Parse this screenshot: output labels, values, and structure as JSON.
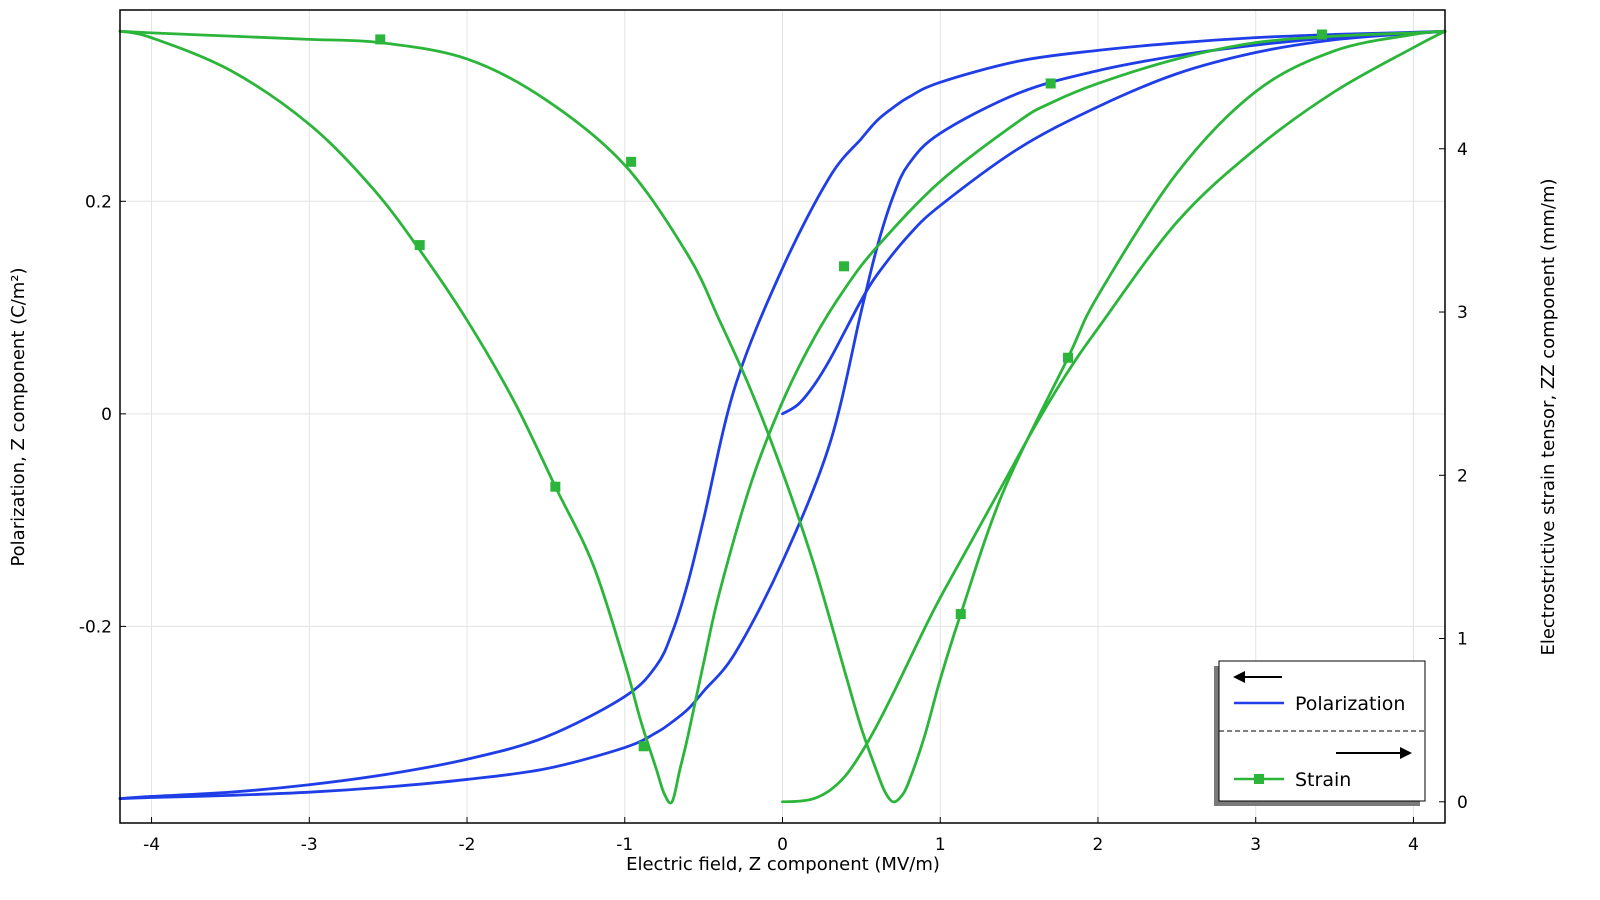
{
  "chart_data": {
    "type": "line",
    "title": "",
    "xlabel": "Electric field, Z component (MV/m)",
    "ylabel_left": "Polarization, Z component (C/m²)",
    "ylabel_right": "Electrostrictive strain tensor, ZZ component (mm/m)",
    "xlim": [
      -4.2,
      4.2
    ],
    "ylim_left": [
      -0.385,
      0.38
    ],
    "ylim_right": [
      -0.13,
      4.85
    ],
    "xticks": [
      "-4",
      "-3",
      "-2",
      "-1",
      "0",
      "1",
      "2",
      "3",
      "4"
    ],
    "yticks_left": [
      "0.2",
      "0",
      "-0.2"
    ],
    "yticks_right": [
      "4",
      "3",
      "2",
      "1",
      "0"
    ],
    "grid": true,
    "legend": {
      "placement": "bottom-right",
      "groups": [
        {
          "arrow": "left",
          "entries": [
            "Polarization"
          ]
        },
        {
          "arrow": "right",
          "entries": [
            "Strain"
          ]
        }
      ]
    },
    "series": [
      {
        "name": "Polarization",
        "axis": "left",
        "color": "#1f3ee8",
        "marker": "none",
        "segments": [
          {
            "x": [
              0,
              0.1,
              0.2,
              0.3,
              0.4,
              0.5,
              0.6,
              0.8,
              1.0,
              1.5,
              2.0,
              2.5,
              3.0,
              3.5,
              4.0,
              4.2
            ],
            "y": [
              0.0,
              0.009,
              0.027,
              0.051,
              0.079,
              0.107,
              0.131,
              0.168,
              0.196,
              0.25,
              0.289,
              0.32,
              0.34,
              0.352,
              0.358,
              0.36
            ]
          },
          {
            "x": [
              4.2,
              4.0,
              3.5,
              3.0,
              2.5,
              2.0,
              1.5,
              1.0,
              0.8,
              0.7,
              0.6,
              0.5,
              0.3,
              0.0,
              -0.3,
              -0.5,
              -0.6,
              -0.7,
              -0.8,
              -1.0,
              -1.5,
              -2.0,
              -2.5,
              -3.0,
              -3.5,
              -4.0,
              -4.2
            ],
            "y": [
              0.36,
              0.359,
              0.357,
              0.354,
              0.349,
              0.342,
              0.332,
              0.312,
              0.298,
              0.288,
              0.276,
              0.259,
              0.223,
              0.137,
              0.026,
              -0.099,
              -0.159,
              -0.206,
              -0.237,
              -0.266,
              -0.304,
              -0.325,
              -0.339,
              -0.349,
              -0.356,
              -0.36,
              -0.362
            ]
          },
          {
            "x": [
              -4.2,
              -4.0,
              -3.5,
              -3.0,
              -2.5,
              -2.0,
              -1.5,
              -1.0,
              -0.8,
              -0.7,
              -0.6,
              -0.5,
              -0.3,
              0.0,
              0.3,
              0.5,
              0.6,
              0.7,
              0.8,
              1.0,
              1.5,
              2.0,
              2.5,
              3.0,
              3.5,
              4.0,
              4.2
            ],
            "y": [
              -0.362,
              -0.361,
              -0.359,
              -0.356,
              -0.351,
              -0.344,
              -0.334,
              -0.314,
              -0.3,
              -0.29,
              -0.278,
              -0.261,
              -0.225,
              -0.139,
              -0.028,
              0.097,
              0.157,
              0.204,
              0.235,
              0.264,
              0.302,
              0.323,
              0.337,
              0.347,
              0.354,
              0.358,
              0.36
            ]
          }
        ]
      },
      {
        "name": "Strain",
        "axis": "right",
        "color": "#2bb53a",
        "marker": "square",
        "segments": [
          {
            "x": [
              0,
              0.1,
              0.2,
              0.3,
              0.4,
              0.5,
              0.6,
              0.7,
              0.8,
              0.9,
              1.0,
              1.2,
              1.4,
              1.6,
              1.8,
              2.0,
              2.5,
              3.0,
              3.5,
              4.0,
              4.2
            ],
            "y": [
              0.0,
              0.003,
              0.02,
              0.07,
              0.16,
              0.3,
              0.47,
              0.66,
              0.86,
              1.06,
              1.25,
              1.6,
              1.95,
              2.3,
              2.62,
              2.9,
              3.55,
              4.0,
              4.35,
              4.62,
              4.72
            ]
          },
          {
            "x": [
              4.2,
              4.0,
              3.5,
              3.0,
              2.5,
              2.0,
              1.7,
              1.5,
              1.0,
              0.6,
              0.4,
              0.2,
              0.0,
              -0.2,
              -0.4,
              -0.5,
              -0.6,
              -0.65,
              -0.7,
              -0.75,
              -0.8,
              -0.9,
              -1.0,
              -1.2,
              -1.44,
              -1.7,
              -2.0,
              -2.3,
              -2.6,
              -3.0,
              -3.5,
              -4.0,
              -4.2
            ],
            "y": [
              4.72,
              4.71,
              4.69,
              4.65,
              4.55,
              4.4,
              4.28,
              4.17,
              3.8,
              3.4,
              3.15,
              2.84,
              2.45,
              1.95,
              1.28,
              0.85,
              0.4,
              0.2,
              0.0,
              0.05,
              0.2,
              0.5,
              0.85,
              1.45,
              1.93,
              2.45,
              2.95,
              3.38,
              3.76,
              4.15,
              4.48,
              4.68,
              4.72
            ]
          },
          {
            "x": [
              -4.2,
              -4.0,
              -3.5,
              -3.0,
              -2.55,
              -2.0,
              -1.5,
              -1.0,
              -0.6,
              -0.4,
              -0.2,
              0.0,
              0.2,
              0.4,
              0.5,
              0.6,
              0.65,
              0.7,
              0.75,
              0.8,
              0.9,
              1.0,
              1.13,
              1.4,
              1.81,
              2.0,
              2.5,
              3.0,
              3.5,
              4.0,
              4.2
            ],
            "y": [
              4.72,
              4.71,
              4.69,
              4.67,
              4.65,
              4.55,
              4.3,
              3.9,
              3.35,
              2.95,
              2.52,
              2.02,
              1.45,
              0.78,
              0.45,
              0.18,
              0.06,
              0.0,
              0.03,
              0.12,
              0.4,
              0.75,
              1.15,
              1.9,
              2.72,
              3.1,
              3.85,
              4.35,
              4.6,
              4.7,
              4.72
            ]
          }
        ],
        "markers": [
          [
            0.39,
            3.28
          ],
          [
            1.7,
            4.4
          ],
          [
            3.42,
            4.7
          ],
          [
            -0.96,
            3.92
          ],
          [
            -1.44,
            1.93
          ],
          [
            -2.3,
            3.41
          ],
          [
            -2.55,
            4.67
          ],
          [
            -0.88,
            0.34
          ],
          [
            1.13,
            1.15
          ],
          [
            1.81,
            2.72
          ]
        ]
      }
    ]
  }
}
